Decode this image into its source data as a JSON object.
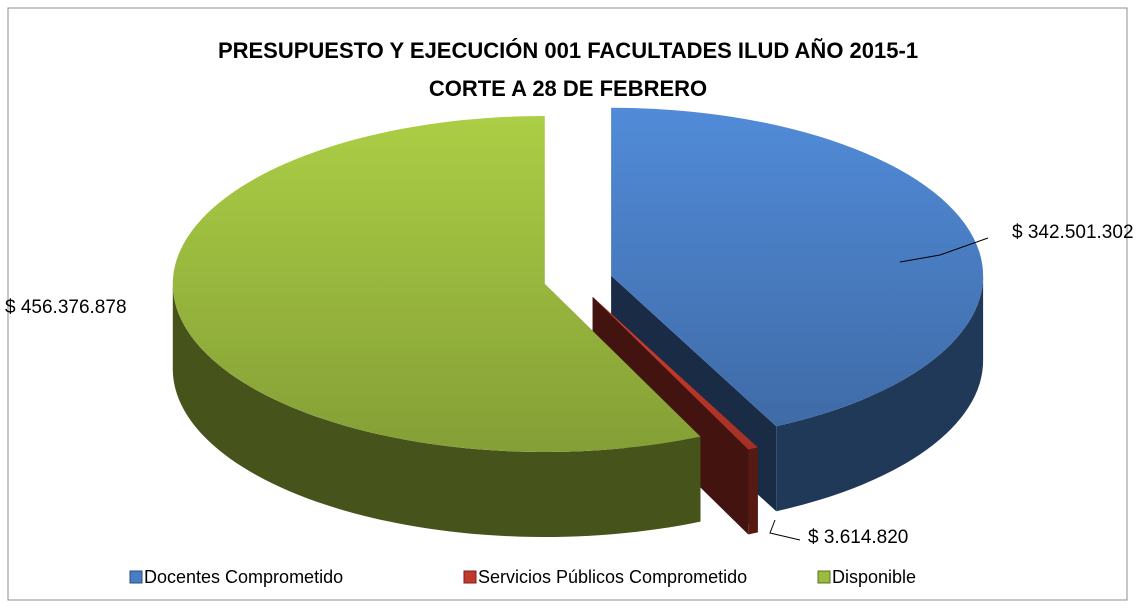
{
  "chart_data": {
    "type": "pie3d",
    "title": [
      "PRESUPUESTO Y EJECUCIÓN  001 FACULTADES ILUD AÑO 2015-1",
      "CORTE A 28 DE FEBRERO"
    ],
    "categories": [
      "Docentes Comprometido",
      "Servicios Públicos Comprometido",
      "Disponible"
    ],
    "values": [
      342501302,
      3614820,
      456376878
    ],
    "value_labels": [
      "$ 342.501.302",
      "$ 3.614.820",
      "$ 456.376.878"
    ],
    "colors": [
      "#4a7ec4",
      "#c0392b",
      "#9bbb3f"
    ],
    "legend": "bottom"
  }
}
